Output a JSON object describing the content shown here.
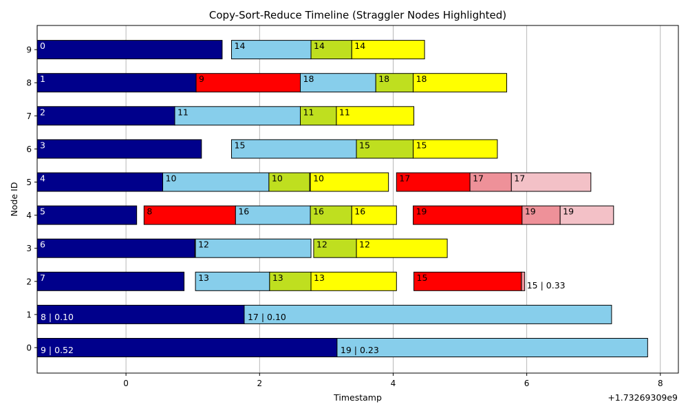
{
  "chart_data": {
    "type": "gantt",
    "title": "Copy-Sort-Reduce Timeline (Straggler Nodes Highlighted)",
    "xlabel": "Timestamp",
    "ylabel": "Node ID",
    "x_offset_label": "+1.73269309e9",
    "xlim": [
      -1.33,
      8.27
    ],
    "x_ticks": [
      0,
      2,
      4,
      6,
      8
    ],
    "x_tick_labels": [
      "0",
      "2",
      "4",
      "6",
      "8"
    ],
    "y_ticks": [
      {
        "node": 0,
        "label": "0",
        "straggler": true
      },
      {
        "node": 1,
        "label": "1",
        "straggler": true
      },
      {
        "node": 2,
        "label": "2",
        "straggler": false
      },
      {
        "node": 3,
        "label": "3",
        "straggler": false
      },
      {
        "node": 4,
        "label": "4",
        "straggler": false
      },
      {
        "node": 5,
        "label": "5",
        "straggler": false
      },
      {
        "node": 6,
        "label": "6",
        "straggler": false
      },
      {
        "node": 7,
        "label": "7",
        "straggler": false
      },
      {
        "node": 8,
        "label": "8",
        "straggler": false
      },
      {
        "node": 9,
        "label": "9",
        "straggler": false
      }
    ],
    "grid": "x",
    "colors": {
      "dark_blue": "#00008b",
      "light_blue": "#87ceeb",
      "lime": "#bfdf1f",
      "yellow": "#ffff00",
      "red": "#ff0000",
      "pink": "#ee9199",
      "light_pink": "#f3c1c7",
      "straggler_tick": "#ff0000"
    },
    "bars": [
      {
        "node": 9,
        "start": -1.33,
        "end": 1.44,
        "color": "dark_blue",
        "label": "0",
        "text_color": "#ffffff"
      },
      {
        "node": 9,
        "start": 1.58,
        "end": 2.77,
        "color": "light_blue",
        "label": "14"
      },
      {
        "node": 9,
        "start": 2.77,
        "end": 3.38,
        "color": "lime",
        "label": "14"
      },
      {
        "node": 9,
        "start": 3.38,
        "end": 4.47,
        "color": "yellow",
        "label": "14"
      },
      {
        "node": 8,
        "start": -1.33,
        "end": 1.05,
        "color": "dark_blue",
        "label": "1",
        "text_color": "#ffffff"
      },
      {
        "node": 8,
        "start": 1.05,
        "end": 2.61,
        "color": "red",
        "label": "9"
      },
      {
        "node": 8,
        "start": 2.61,
        "end": 3.74,
        "color": "light_blue",
        "label": "18"
      },
      {
        "node": 8,
        "start": 3.74,
        "end": 4.3,
        "color": "lime",
        "label": "18"
      },
      {
        "node": 8,
        "start": 4.3,
        "end": 5.7,
        "color": "yellow",
        "label": "18"
      },
      {
        "node": 7,
        "start": -1.33,
        "end": 0.73,
        "color": "dark_blue",
        "label": "2",
        "text_color": "#ffffff"
      },
      {
        "node": 7,
        "start": 0.73,
        "end": 2.61,
        "color": "light_blue",
        "label": "11"
      },
      {
        "node": 7,
        "start": 2.61,
        "end": 3.15,
        "color": "lime",
        "label": "11"
      },
      {
        "node": 7,
        "start": 3.15,
        "end": 4.31,
        "color": "yellow",
        "label": "11"
      },
      {
        "node": 6,
        "start": -1.33,
        "end": 1.13,
        "color": "dark_blue",
        "label": "3",
        "text_color": "#ffffff"
      },
      {
        "node": 6,
        "start": 1.58,
        "end": 3.45,
        "color": "light_blue",
        "label": "15"
      },
      {
        "node": 6,
        "start": 3.45,
        "end": 4.3,
        "color": "lime",
        "label": "15"
      },
      {
        "node": 6,
        "start": 4.3,
        "end": 5.56,
        "color": "yellow",
        "label": "15"
      },
      {
        "node": 5,
        "start": -1.33,
        "end": 0.55,
        "color": "dark_blue",
        "label": "4",
        "text_color": "#ffffff"
      },
      {
        "node": 5,
        "start": 0.55,
        "end": 2.14,
        "color": "light_blue",
        "label": "10"
      },
      {
        "node": 5,
        "start": 2.14,
        "end": 2.75,
        "color": "lime",
        "label": "10"
      },
      {
        "node": 5,
        "start": 2.76,
        "end": 3.93,
        "color": "yellow",
        "label": "10"
      },
      {
        "node": 5,
        "start": 4.05,
        "end": 5.15,
        "color": "red",
        "label": "17"
      },
      {
        "node": 5,
        "start": 5.15,
        "end": 5.77,
        "color": "pink",
        "label": "17"
      },
      {
        "node": 5,
        "start": 5.77,
        "end": 6.96,
        "color": "light_pink",
        "label": "17"
      },
      {
        "node": 4,
        "start": -1.33,
        "end": 0.16,
        "color": "dark_blue",
        "label": "5",
        "text_color": "#ffffff"
      },
      {
        "node": 4,
        "start": 0.27,
        "end": 1.64,
        "color": "red",
        "label": "8"
      },
      {
        "node": 4,
        "start": 1.64,
        "end": 2.76,
        "color": "light_blue",
        "label": "16"
      },
      {
        "node": 4,
        "start": 2.76,
        "end": 3.38,
        "color": "lime",
        "label": "16"
      },
      {
        "node": 4,
        "start": 3.38,
        "end": 4.05,
        "color": "yellow",
        "label": "16"
      },
      {
        "node": 4,
        "start": 4.3,
        "end": 5.93,
        "color": "red",
        "label": "19"
      },
      {
        "node": 4,
        "start": 5.93,
        "end": 6.5,
        "color": "pink",
        "label": "19"
      },
      {
        "node": 4,
        "start": 6.5,
        "end": 7.3,
        "color": "light_pink",
        "label": "19"
      },
      {
        "node": 3,
        "start": -1.33,
        "end": 1.03,
        "color": "dark_blue",
        "label": "6",
        "text_color": "#ffffff"
      },
      {
        "node": 3,
        "start": 1.04,
        "end": 2.77,
        "color": "light_blue",
        "label": "12"
      },
      {
        "node": 3,
        "start": 2.81,
        "end": 3.45,
        "color": "lime",
        "label": "12"
      },
      {
        "node": 3,
        "start": 3.45,
        "end": 4.81,
        "color": "yellow",
        "label": "12"
      },
      {
        "node": 2,
        "start": -1.33,
        "end": 0.87,
        "color": "dark_blue",
        "label": "7",
        "text_color": "#ffffff"
      },
      {
        "node": 2,
        "start": 1.04,
        "end": 2.15,
        "color": "light_blue",
        "label": "13"
      },
      {
        "node": 2,
        "start": 2.15,
        "end": 2.77,
        "color": "lime",
        "label": "13"
      },
      {
        "node": 2,
        "start": 2.77,
        "end": 4.05,
        "color": "yellow",
        "label": "13"
      },
      {
        "node": 2,
        "start": 4.31,
        "end": 5.92,
        "color": "red",
        "label": "15"
      },
      {
        "node": 2,
        "start": 5.92,
        "end": 5.97,
        "color": "pink",
        "label": "15 | 0.33",
        "label_outside": true
      },
      {
        "node": 1,
        "start": -1.33,
        "end": 1.77,
        "color": "dark_blue",
        "label": "8 | 0.10",
        "text_color": "#ffffff",
        "label_low": true
      },
      {
        "node": 1,
        "start": 1.77,
        "end": 7.27,
        "color": "light_blue",
        "label": "17 | 0.10",
        "label_low": true
      },
      {
        "node": 0,
        "start": -1.33,
        "end": 3.16,
        "color": "dark_blue",
        "label": "9 | 0.52",
        "text_color": "#ffffff",
        "label_low": true
      },
      {
        "node": 0,
        "start": 3.16,
        "end": 7.81,
        "color": "light_blue",
        "label": "19 | 0.23",
        "label_low": true
      }
    ]
  }
}
